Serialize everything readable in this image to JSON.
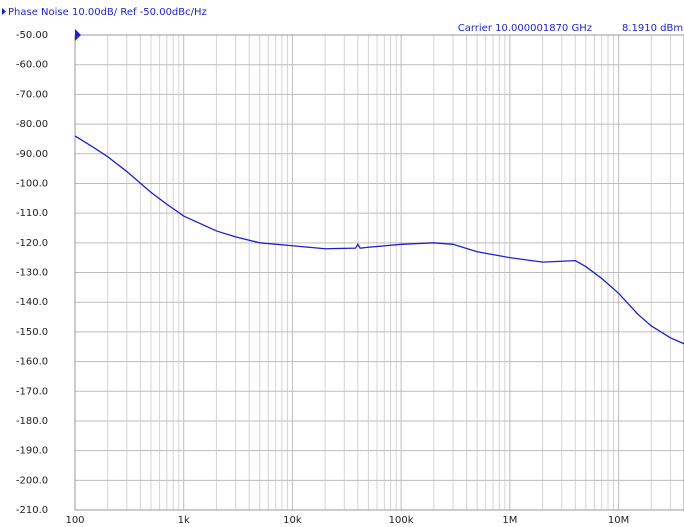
{
  "chart_data": {
    "type": "line",
    "title": "Phase Noise 10.00dB/ Ref -50.00dBc/Hz",
    "annotations": [
      "Carrier 10.000001870 GHz",
      "8.1910 dBm"
    ],
    "x": [
      100,
      150,
      200,
      300,
      500,
      700,
      1000,
      2000,
      3000,
      5000,
      10000,
      20000,
      38000,
      40000,
      42000,
      50000,
      100000,
      200000,
      300000,
      500000,
      1000000,
      2000000,
      4000000,
      5000000,
      7000000,
      10000000,
      15000000,
      20000000,
      30000000,
      40000000
    ],
    "series": [
      {
        "name": "Phase Noise",
        "color": "#1f1fcc",
        "values": [
          -84,
          -88,
          -91,
          -96,
          -103,
          -107,
          -111,
          -116,
          -118,
          -120,
          -121,
          -122,
          -121.8,
          -120.5,
          -121.8,
          -121.5,
          -120.5,
          -120,
          -120.5,
          -123,
          -125,
          -126.5,
          -126,
          -128,
          -132,
          -137,
          -144,
          -148,
          -152,
          -154
        ]
      }
    ],
    "xscale": "log",
    "xlim": [
      100,
      40000000
    ],
    "xticks": [
      100,
      {
        "value": 1000,
        "label": "1k"
      },
      {
        "value": 10000,
        "label": "10k"
      },
      {
        "value": 100000,
        "label": "100k"
      },
      {
        "value": 1000000,
        "label": "1M"
      },
      {
        "value": 10000000,
        "label": "10M"
      }
    ],
    "ylim": [
      -210,
      -50
    ],
    "yticks": [
      {
        "value": -50,
        "label": "-50.00"
      },
      {
        "value": -60,
        "label": "-60.00"
      },
      {
        "value": -70,
        "label": "-70.00"
      },
      {
        "value": -80,
        "label": "-80.00"
      },
      {
        "value": -90,
        "label": "-90.00"
      },
      {
        "value": -100,
        "label": "-100.0"
      },
      {
        "value": -110,
        "label": "-110.0"
      },
      {
        "value": -120,
        "label": "-120.0"
      },
      {
        "value": -130,
        "label": "-130.0"
      },
      {
        "value": -140,
        "label": "-140.0"
      },
      {
        "value": -150,
        "label": "-150.0"
      },
      {
        "value": -160,
        "label": "-160.0"
      },
      {
        "value": -170,
        "label": "-170.0"
      },
      {
        "value": -180,
        "label": "-180.0"
      },
      {
        "value": -190,
        "label": "-190.0"
      },
      {
        "value": -200,
        "label": "-200.0"
      },
      {
        "value": -210,
        "label": "-210.0"
      }
    ],
    "grid": true,
    "minor_grid": true
  }
}
